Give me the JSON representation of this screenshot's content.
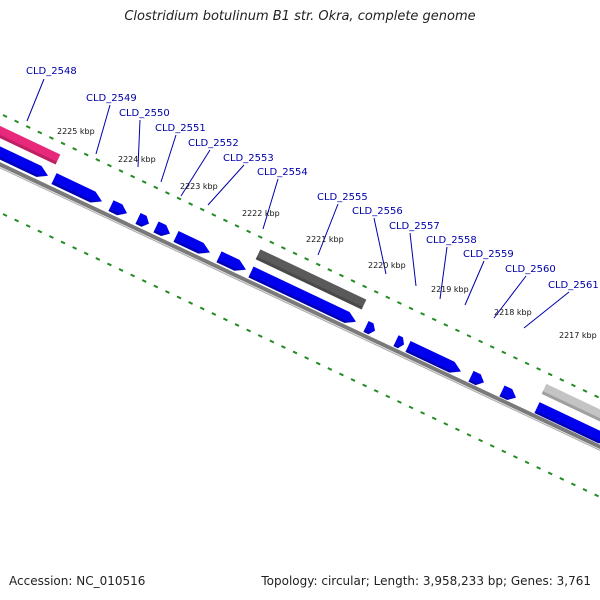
{
  "title": "Clostridium botulinum B1 str. Okra, complete genome",
  "accession_text": "Accession: NC_010516",
  "summary_text": "Topology: circular; Length: 3,958,233 bp; Genes: 3,761",
  "colors": {
    "backbone": "#7a7a7a",
    "gene_forward": "#0000ee",
    "label": "#0000aa",
    "tick": "#228b22",
    "highlight_magenta": "#e8287a",
    "highlight_dark": "#5a5a5a",
    "highlight_light": "#c4c4c4"
  },
  "ticks": [
    {
      "label": "2225 kbp"
    },
    {
      "label": "2224 kbp"
    },
    {
      "label": "2223 kbp"
    },
    {
      "label": "2222 kbp"
    },
    {
      "label": "2221 kbp"
    },
    {
      "label": "2220 kbp"
    },
    {
      "label": "2219 kbp"
    },
    {
      "label": "2218 kbp"
    },
    {
      "label": "2217 kbp"
    }
  ],
  "genes": [
    {
      "label": "CLD_2548"
    },
    {
      "label": "CLD_2549"
    },
    {
      "label": "CLD_2550"
    },
    {
      "label": "CLD_2551"
    },
    {
      "label": "CLD_2552"
    },
    {
      "label": "CLD_2553"
    },
    {
      "label": "CLD_2554"
    },
    {
      "label": "CLD_2555"
    },
    {
      "label": "CLD_2556"
    },
    {
      "label": "CLD_2557"
    },
    {
      "label": "CLD_2558"
    },
    {
      "label": "CLD_2559"
    },
    {
      "label": "CLD_2560"
    },
    {
      "label": "CLD_2561"
    }
  ]
}
